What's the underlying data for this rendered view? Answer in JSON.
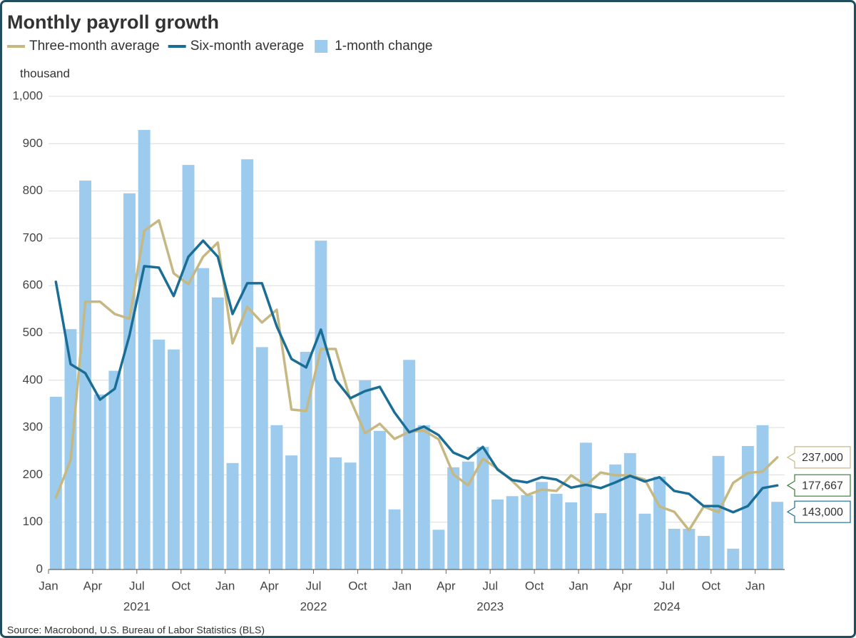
{
  "chart_data": {
    "type": "bar",
    "title": "Monthly payroll growth",
    "y_unit": "thousand",
    "source": "Source: Macrobond, U.S. Bureau of Labor Statistics (BLS)",
    "categories": [
      "Jan",
      null,
      null,
      "Apr",
      null,
      null,
      "Jul",
      null,
      null,
      "Oct",
      null,
      null,
      "Jan",
      null,
      null,
      "Apr",
      null,
      null,
      "Jul",
      null,
      null,
      "Oct",
      null,
      null,
      "Jan",
      null,
      null,
      "Apr",
      null,
      null,
      "Jul",
      null,
      null,
      "Oct",
      null,
      null,
      "Jan",
      null,
      null,
      "Apr",
      null,
      null,
      "Jul",
      null,
      null,
      "Oct",
      null,
      null,
      "Jan",
      null
    ],
    "years": [
      "2021",
      "2022",
      "2023",
      "2024"
    ],
    "ylim": [
      0,
      1000
    ],
    "yticks": [
      0,
      100,
      200,
      300,
      400,
      500,
      600,
      700,
      800,
      900,
      {
        "value": 1000,
        "label": "1,000"
      }
    ],
    "grid": true,
    "series": [
      {
        "name": "Three-month average",
        "type": "line",
        "color": "#c5b882",
        "label_color": "#c5b882",
        "end_label": "237,000",
        "values": [
          152,
          231,
          566,
          566,
          540,
          530,
          716,
          738,
          626,
          603,
          661,
          691,
          478,
          555,
          522,
          549,
          338,
          335,
          466,
          466,
          359,
          288,
          308,
          276,
          291,
          294,
          275,
          201,
          178,
          234,
          213,
          187,
          157,
          169,
          166,
          199,
          178,
          205,
          199,
          199,
          190,
          133,
          122,
          83,
          133,
          121,
          183,
          204,
          207,
          237
        ]
      },
      {
        "name": "Six-month average",
        "type": "line",
        "color": "#1a6e96",
        "label_color": "#2e7d32",
        "end_label": "177,667",
        "values": [
          608,
          434,
          415,
          359,
          382,
          495,
          641,
          638,
          578,
          661,
          695,
          661,
          540,
          605,
          605,
          514,
          445,
          427,
          507,
          401,
          362,
          377,
          386,
          332,
          290,
          302,
          284,
          247,
          234,
          259,
          211,
          189,
          184,
          195,
          190,
          173,
          179,
          172,
          184,
          198,
          186,
          195,
          166,
          160,
          134,
          134,
          121,
          134,
          172,
          177.667
        ]
      },
      {
        "name": "1-month change",
        "type": "bar",
        "color": "#9ccbee",
        "label_color": "#1a6e96",
        "end_label": "143,000",
        "values": [
          365,
          508,
          822,
          370,
          420,
          795,
          929,
          486,
          465,
          855,
          637,
          575,
          225,
          867,
          470,
          305,
          241,
          460,
          695,
          237,
          226,
          400,
          293,
          127,
          443,
          305,
          84,
          216,
          228,
          259,
          148,
          155,
          157,
          185,
          160,
          142,
          268,
          119,
          222,
          246,
          118,
          196,
          86,
          86,
          71,
          240,
          44,
          261,
          305,
          143
        ]
      }
    ]
  }
}
